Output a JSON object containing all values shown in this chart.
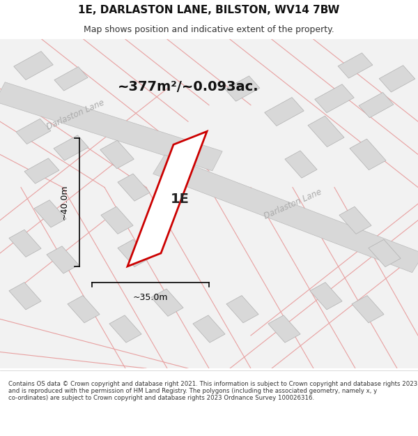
{
  "title": "1E, DARLASTON LANE, BILSTON, WV14 7BW",
  "subtitle": "Map shows position and indicative extent of the property.",
  "area_text": "~377m²/~0.093ac.",
  "label_1E": "1E",
  "dim_height": "~40.0m",
  "dim_width": "~35.0m",
  "road_label_1": "Darlaston Lane",
  "road_label_2": "Darlaston Lane",
  "footer": "Contains OS data © Crown copyright and database right 2021. This information is subject to Crown copyright and database rights 2023 and is reproduced with the permission of HM Land Registry. The polygons (including the associated geometry, namely x, y co-ordinates) are subject to Crown copyright and database rights 2023 Ordnance Survey 100026316.",
  "bg_color": "#f5f5f5",
  "map_bg": "#f0f0f0",
  "road_color": "#cccccc",
  "road_fill": "#e8e8e8",
  "block_color": "#d0d0d0",
  "block_fill": "#e0e0e0",
  "property_color": "#cc0000",
  "property_fill": "#ffffff",
  "pink_line_color": "#e8a0a0",
  "dim_color": "#000000",
  "text_color": "#333333",
  "gray_text": "#aaaaaa"
}
